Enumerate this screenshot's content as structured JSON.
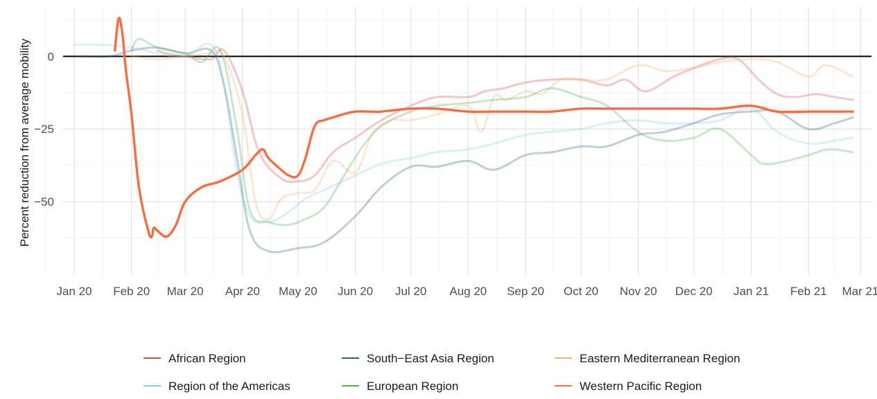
{
  "chart_data": {
    "type": "line",
    "title": "",
    "xlabel": "",
    "ylabel": "Percent reduction from average mobility",
    "x_ticks": [
      "Jan 20",
      "Feb 20",
      "Mar 20",
      "Apr 20",
      "May 20",
      "Jun 20",
      "Jul 20",
      "Aug 20",
      "Sep 20",
      "Oct 20",
      "Nov 20",
      "Dec 20",
      "Jan 21",
      "Feb 21",
      "Mar 21"
    ],
    "y_ticks": [
      0,
      -25,
      -50
    ],
    "y_tick_labels": [
      "0",
      "−25",
      "−50"
    ],
    "xlim": [
      "2019-12-26",
      "2021-03-07"
    ],
    "ylim": [
      -75,
      17
    ],
    "reference_line": 0,
    "grid": true,
    "legend_position": "bottom",
    "legend_columns": 3,
    "series": [
      {
        "name": "African Region",
        "color": "#d7474b",
        "opacity": 0.3,
        "x": [
          "2020-02-15",
          "2020-02-20",
          "2020-03-01",
          "2020-03-15",
          "2020-03-22",
          "2020-04-01",
          "2020-04-10",
          "2020-04-22",
          "2020-05-01",
          "2020-05-10",
          "2020-05-20",
          "2020-06-01",
          "2020-06-15",
          "2020-07-01",
          "2020-07-15",
          "2020-08-01",
          "2020-08-10",
          "2020-08-20",
          "2020-09-01",
          "2020-09-15",
          "2020-10-01",
          "2020-10-15",
          "2020-10-25",
          "2020-11-05",
          "2020-11-20",
          "2020-12-01",
          "2020-12-15",
          "2020-12-25",
          "2021-01-05",
          "2021-01-15",
          "2021-01-25",
          "2021-02-05",
          "2021-02-15",
          "2021-02-25"
        ],
        "y": [
          2,
          1,
          0,
          -1,
          2,
          -12,
          -33,
          -42,
          -43,
          -41,
          -33,
          -28,
          -22,
          -17,
          -14,
          -14,
          -12,
          -11,
          -9,
          -8,
          -8,
          -10,
          -8,
          -12,
          -7,
          -4,
          -1,
          -1,
          -8,
          -13,
          -14,
          -13,
          -14,
          -15
        ]
      },
      {
        "name": "South−East Asia Region",
        "color": "#2a5f80",
        "opacity": 0.3,
        "x": [
          "2020-01-03",
          "2020-01-20",
          "2020-02-01",
          "2020-02-15",
          "2020-03-01",
          "2020-03-15",
          "2020-03-22",
          "2020-03-29",
          "2020-04-05",
          "2020-04-15",
          "2020-05-01",
          "2020-05-15",
          "2020-06-01",
          "2020-06-15",
          "2020-07-01",
          "2020-07-15",
          "2020-08-01",
          "2020-08-15",
          "2020-09-01",
          "2020-09-15",
          "2020-10-01",
          "2020-10-15",
          "2020-11-01",
          "2020-11-15",
          "2020-12-01",
          "2020-12-15",
          "2021-01-01",
          "2021-01-15",
          "2021-02-01",
          "2021-02-15",
          "2021-02-25"
        ],
        "y": [
          0,
          0,
          2,
          3,
          1,
          2,
          -10,
          -35,
          -60,
          -67,
          -66,
          -64,
          -55,
          -45,
          -38,
          -38,
          -36,
          -39,
          -34,
          -33,
          -31,
          -31,
          -27,
          -26,
          -23,
          -20,
          -19,
          -19,
          -25,
          -23,
          -21
        ]
      },
      {
        "name": "Eastern Mediterranean Region",
        "color": "#fdae6b",
        "opacity": 0.3,
        "x": [
          "2020-02-01",
          "2020-02-15",
          "2020-03-01",
          "2020-03-15",
          "2020-03-22",
          "2020-04-01",
          "2020-04-08",
          "2020-04-15",
          "2020-04-22",
          "2020-05-01",
          "2020-05-10",
          "2020-05-20",
          "2020-06-01",
          "2020-06-10",
          "2020-06-20",
          "2020-07-01",
          "2020-07-15",
          "2020-08-01",
          "2020-08-08",
          "2020-08-15",
          "2020-08-22",
          "2020-09-01",
          "2020-09-10",
          "2020-09-20",
          "2020-10-01",
          "2020-10-15",
          "2020-11-01",
          "2020-11-15",
          "2020-12-01",
          "2020-12-15",
          "2021-01-01",
          "2021-01-15",
          "2021-02-01",
          "2021-02-10",
          "2021-02-25"
        ],
        "y": [
          0,
          -1,
          0,
          1,
          0,
          -20,
          -50,
          -56,
          -49,
          -47,
          -46,
          -36,
          -40,
          -27,
          -22,
          -22,
          -20,
          -17,
          -26,
          -14,
          -15,
          -12,
          -13,
          -8,
          -8,
          -8,
          -3,
          -5,
          -4,
          -2,
          -1,
          -2,
          -7,
          -3,
          -7
        ]
      },
      {
        "name": "Region of the Americas",
        "color": "#7fd0dc",
        "opacity": 0.3,
        "x": [
          "2020-01-01",
          "2020-01-15",
          "2020-02-01",
          "2020-02-15",
          "2020-03-01",
          "2020-03-15",
          "2020-03-22",
          "2020-03-29",
          "2020-04-05",
          "2020-04-15",
          "2020-04-25",
          "2020-05-05",
          "2020-05-15",
          "2020-06-01",
          "2020-06-15",
          "2020-07-01",
          "2020-07-15",
          "2020-08-01",
          "2020-08-15",
          "2020-09-01",
          "2020-09-15",
          "2020-10-01",
          "2020-10-15",
          "2020-11-01",
          "2020-11-15",
          "2020-12-01",
          "2020-12-15",
          "2021-01-01",
          "2021-01-15",
          "2021-02-01",
          "2021-02-15",
          "2021-02-25"
        ],
        "y": [
          4,
          4,
          3,
          1,
          0,
          4,
          -10,
          -40,
          -55,
          -57,
          -54,
          -49,
          -46,
          -41,
          -37,
          -35,
          -33,
          -32,
          -30,
          -27,
          -26,
          -25,
          -23,
          -22,
          -23,
          -23,
          -22,
          -18,
          -26,
          -30,
          -29,
          -28
        ]
      },
      {
        "name": "European Region",
        "color": "#4eb151",
        "opacity": 0.3,
        "x": [
          "2020-02-01",
          "2020-02-05",
          "2020-02-15",
          "2020-03-01",
          "2020-03-10",
          "2020-03-20",
          "2020-03-29",
          "2020-04-05",
          "2020-04-15",
          "2020-04-25",
          "2020-05-05",
          "2020-05-15",
          "2020-05-25",
          "2020-06-05",
          "2020-06-15",
          "2020-07-01",
          "2020-07-15",
          "2020-08-01",
          "2020-08-15",
          "2020-09-01",
          "2020-09-15",
          "2020-10-01",
          "2020-10-15",
          "2020-11-01",
          "2020-11-15",
          "2020-12-01",
          "2020-12-15",
          "2021-01-01",
          "2021-01-08",
          "2021-01-20",
          "2021-02-01",
          "2021-02-12",
          "2021-02-25"
        ],
        "y": [
          2,
          6,
          3,
          1,
          -2,
          2,
          -25,
          -53,
          -57,
          -58,
          -56,
          -52,
          -42,
          -31,
          -24,
          -19,
          -17,
          -16,
          -15,
          -14,
          -11,
          -14,
          -17,
          -26,
          -29,
          -28,
          -25,
          -34,
          -37,
          -36,
          -34,
          -32,
          -33
        ]
      },
      {
        "name": "Western Pacific Region",
        "color": "#fb6b3d",
        "opacity": 1,
        "x": [
          "2020-01-23",
          "2020-01-25",
          "2020-01-27",
          "2020-01-29",
          "2020-02-01",
          "2020-02-05",
          "2020-02-10",
          "2020-02-12",
          "2020-02-13",
          "2020-02-15",
          "2020-02-20",
          "2020-02-25",
          "2020-03-01",
          "2020-03-10",
          "2020-03-20",
          "2020-04-01",
          "2020-04-08",
          "2020-04-12",
          "2020-04-15",
          "2020-04-20",
          "2020-04-26",
          "2020-05-01",
          "2020-05-05",
          "2020-05-10",
          "2020-05-15",
          "2020-05-20",
          "2020-05-25",
          "2020-06-01",
          "2020-06-10",
          "2020-06-15",
          "2020-07-01",
          "2020-07-15",
          "2020-08-01",
          "2020-08-15",
          "2020-09-01",
          "2020-09-15",
          "2020-10-01",
          "2020-10-15",
          "2020-11-01",
          "2020-11-15",
          "2020-12-01",
          "2020-12-15",
          "2021-01-01",
          "2021-01-15",
          "2021-02-01",
          "2021-02-15",
          "2021-02-25"
        ],
        "y": [
          2,
          13,
          8,
          -5,
          -20,
          -45,
          -60,
          -62,
          -59,
          -60,
          -62,
          -58,
          -50,
          -45,
          -43,
          -39,
          -34,
          -32,
          -35,
          -38,
          -41,
          -41,
          -35,
          -24,
          -22,
          -21,
          -20,
          -19,
          -19,
          -19,
          -18,
          -18,
          -19,
          -19,
          -19,
          -19,
          -18,
          -18,
          -18,
          -18,
          -18,
          -18,
          -17,
          -19,
          -19,
          -19,
          -19
        ]
      }
    ]
  }
}
